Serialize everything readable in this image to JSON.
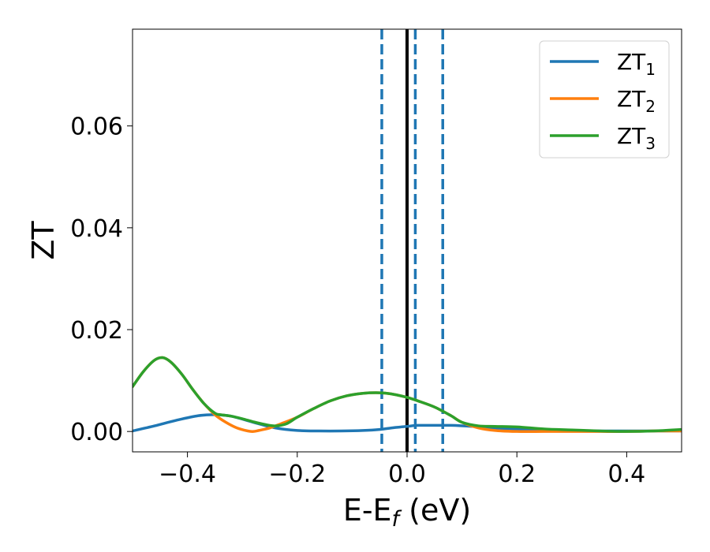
{
  "chart_data": {
    "type": "line",
    "xlabel": "E-E",
    "xlabel_sub": "f",
    "xlabel_unit": " (eV)",
    "ylabel": "ZT",
    "xlim": [
      -0.5,
      0.5
    ],
    "ylim": [
      -0.004,
      0.079
    ],
    "xticks": [
      -0.4,
      -0.2,
      0.0,
      0.2,
      0.4
    ],
    "xtick_labels": [
      "−0.4",
      "−0.2",
      "0.0",
      "0.2",
      "0.4"
    ],
    "yticks": [
      0.0,
      0.02,
      0.04,
      0.06
    ],
    "ytick_labels": [
      "0.00",
      "0.02",
      "0.04",
      "0.06"
    ],
    "grid": false,
    "legend_placement": "top-right",
    "vlines": [
      {
        "x": 0.0,
        "style": "solid",
        "color": "#000000"
      },
      {
        "x": -0.046,
        "style": "dashed",
        "color": "#1f77b4"
      },
      {
        "x": 0.015,
        "style": "dashed",
        "color": "#1f77b4"
      },
      {
        "x": 0.065,
        "style": "dashed",
        "color": "#1f77b4"
      }
    ],
    "series": [
      {
        "name": "ZT",
        "sub": "1",
        "color": "#1f77b4",
        "x": [
          -0.5,
          -0.46,
          -0.42,
          -0.38,
          -0.35,
          -0.32,
          -0.28,
          -0.24,
          -0.2,
          -0.16,
          -0.12,
          -0.08,
          -0.05,
          -0.02,
          0.0,
          0.02,
          0.05,
          0.08,
          0.12,
          0.16,
          0.2,
          0.25,
          0.3,
          0.35,
          0.4,
          0.45,
          0.5
        ],
        "values": [
          0.0001,
          0.0011,
          0.0022,
          0.0031,
          0.0033,
          0.003,
          0.0018,
          0.0007,
          0.0002,
          0.0001,
          0.0001,
          0.0002,
          0.0004,
          0.0008,
          0.001,
          0.0012,
          0.0012,
          0.0012,
          0.001,
          0.0007,
          0.0004,
          0.0002,
          0.0001,
          0.0001,
          0.0001,
          0.0001,
          0.0001
        ]
      },
      {
        "name": "ZT",
        "sub": "2",
        "color": "#ff7f0e",
        "x": [
          -0.5,
          -0.48,
          -0.46,
          -0.445,
          -0.43,
          -0.41,
          -0.39,
          -0.37,
          -0.35,
          -0.33,
          -0.31,
          -0.29,
          -0.28,
          -0.27,
          -0.25,
          -0.23,
          -0.2,
          -0.17,
          -0.14,
          -0.11,
          -0.08,
          -0.05,
          -0.03,
          0.0,
          0.02,
          0.05,
          0.08,
          0.1,
          0.13,
          0.16,
          0.2,
          0.25,
          0.3,
          0.35,
          0.4,
          0.45,
          0.5
        ],
        "values": [
          0.0088,
          0.0118,
          0.014,
          0.0145,
          0.0136,
          0.0112,
          0.0082,
          0.0055,
          0.0033,
          0.0018,
          0.0007,
          0.0001,
          0.0,
          0.0002,
          0.0007,
          0.0015,
          0.0028,
          0.0045,
          0.006,
          0.007,
          0.0075,
          0.0076,
          0.0074,
          0.0067,
          0.006,
          0.0048,
          0.0031,
          0.0018,
          0.0007,
          0.0002,
          0.0,
          0.0,
          0.0,
          0.0,
          0.0,
          0.0001,
          0.0001
        ]
      },
      {
        "name": "ZT",
        "sub": "3",
        "color": "#2ca02c",
        "x": [
          -0.5,
          -0.48,
          -0.46,
          -0.445,
          -0.43,
          -0.41,
          -0.39,
          -0.37,
          -0.35,
          -0.34,
          -0.32,
          -0.3,
          -0.28,
          -0.26,
          -0.24,
          -0.22,
          -0.2,
          -0.17,
          -0.14,
          -0.11,
          -0.08,
          -0.05,
          -0.03,
          0.0,
          0.02,
          0.05,
          0.08,
          0.1,
          0.13,
          0.16,
          0.2,
          0.25,
          0.3,
          0.35,
          0.4,
          0.45,
          0.5
        ],
        "values": [
          0.0088,
          0.0118,
          0.014,
          0.0145,
          0.0136,
          0.0112,
          0.0082,
          0.0055,
          0.0036,
          0.0033,
          0.003,
          0.0025,
          0.0019,
          0.0014,
          0.0011,
          0.0015,
          0.0028,
          0.0045,
          0.006,
          0.007,
          0.0075,
          0.0076,
          0.0074,
          0.0067,
          0.006,
          0.0048,
          0.0031,
          0.0018,
          0.0011,
          0.001,
          0.0009,
          0.0005,
          0.0003,
          0.0001,
          0.0,
          0.0001,
          0.0004
        ]
      }
    ]
  }
}
